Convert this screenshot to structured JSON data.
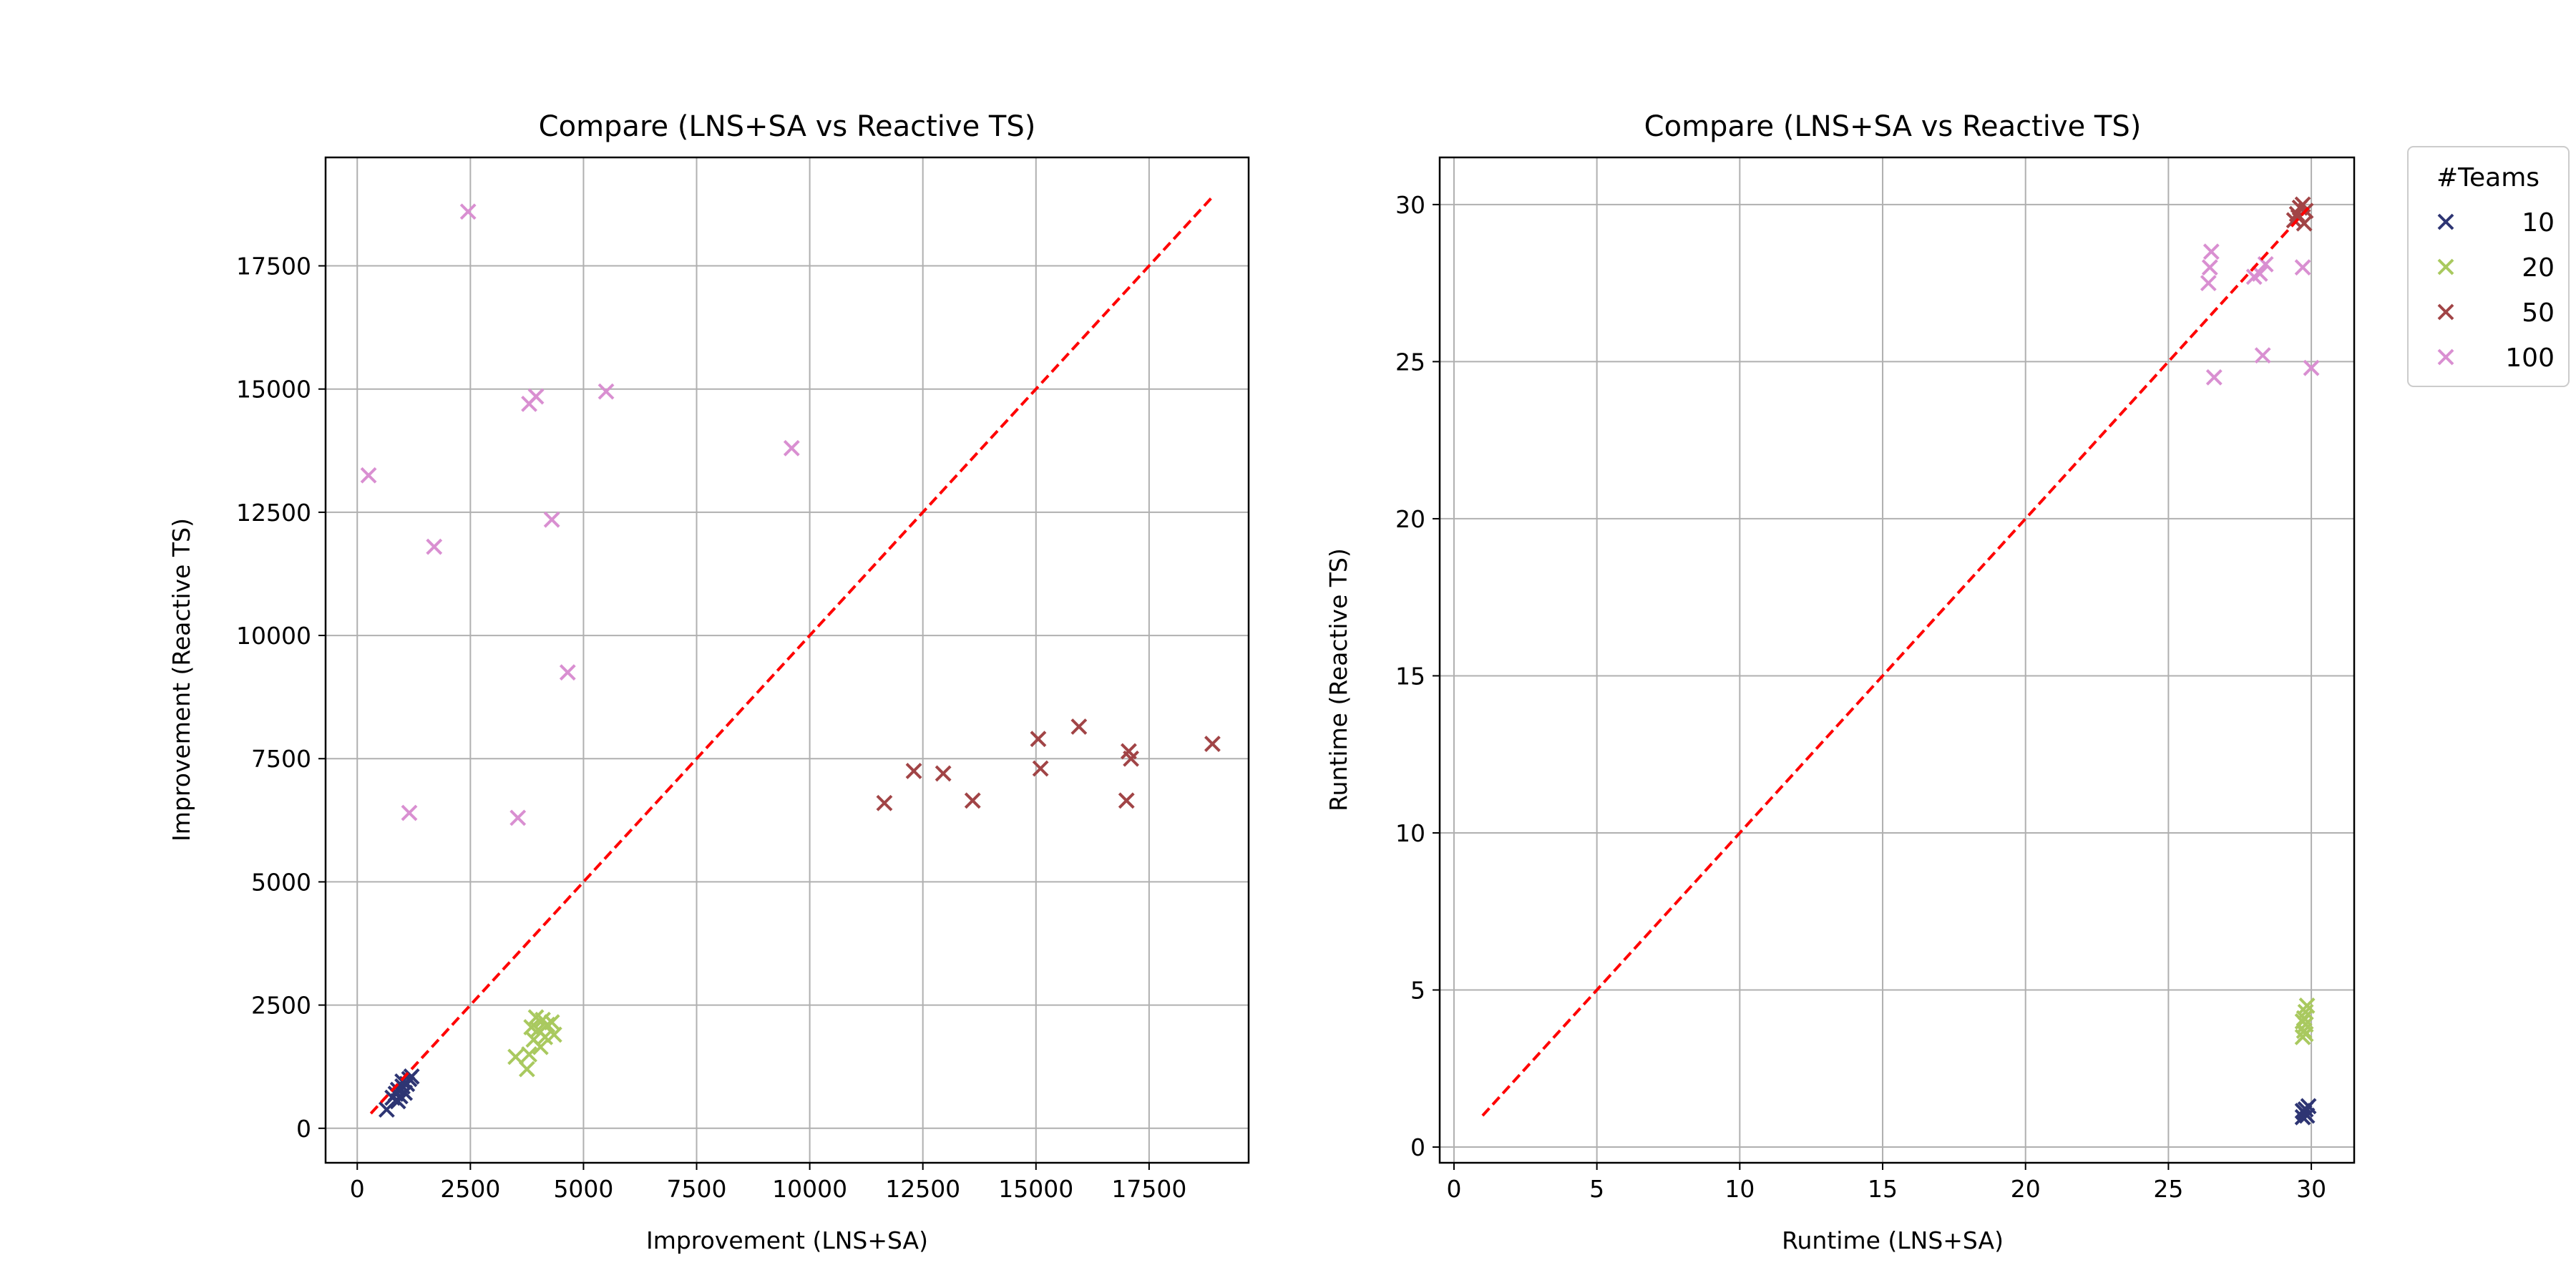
{
  "legend": {
    "title": "#Teams",
    "entries": [
      {
        "label": "10",
        "color": "#2e3573"
      },
      {
        "label": "20",
        "color": "#a9c95f"
      },
      {
        "label": "50",
        "color": "#a14446"
      },
      {
        "label": "100",
        "color": "#d98fd1"
      }
    ]
  },
  "chart_data": [
    {
      "type": "scatter",
      "title": "Compare (LNS+SA vs Reactive TS)",
      "xlabel": "Improvement (LNS+SA)",
      "ylabel": "Improvement (Reactive TS)",
      "xlim": [
        -700,
        19700
      ],
      "ylim": [
        -700,
        19700
      ],
      "xticks": [
        0,
        2500,
        5000,
        7500,
        10000,
        12500,
        15000,
        17500
      ],
      "yticks": [
        0,
        2500,
        5000,
        7500,
        10000,
        12500,
        15000,
        17500
      ],
      "grid": true,
      "reference_line": {
        "x": [
          300,
          18900
        ],
        "y": [
          300,
          18900
        ],
        "color": "#ff0000",
        "style": "dashed"
      },
      "series": [
        {
          "name": "10",
          "color": "#2e3573",
          "marker": "x",
          "points": [
            [
              650,
              380
            ],
            [
              780,
              620
            ],
            [
              850,
              700
            ],
            [
              900,
              780
            ],
            [
              950,
              650
            ],
            [
              1000,
              850
            ],
            [
              1050,
              720
            ],
            [
              1100,
              900
            ],
            [
              1150,
              1000
            ],
            [
              1200,
              1050
            ],
            [
              900,
              550
            ],
            [
              1000,
              950
            ]
          ]
        },
        {
          "name": "20",
          "color": "#a9c95f",
          "marker": "x",
          "points": [
            [
              3500,
              1450
            ],
            [
              3750,
              1200
            ],
            [
              3800,
              1500
            ],
            [
              3850,
              2050
            ],
            [
              3900,
              1800
            ],
            [
              3950,
              2250
            ],
            [
              4000,
              2000
            ],
            [
              4050,
              1650
            ],
            [
              4100,
              2200
            ],
            [
              4150,
              1850
            ],
            [
              4200,
              2100
            ],
            [
              4300,
              2150
            ],
            [
              4350,
              1900
            ]
          ]
        },
        {
          "name": "50",
          "color": "#a14446",
          "marker": "x",
          "points": [
            [
              11650,
              6600
            ],
            [
              12300,
              7250
            ],
            [
              12950,
              7200
            ],
            [
              13600,
              6650
            ],
            [
              15050,
              7900
            ],
            [
              15100,
              7300
            ],
            [
              15950,
              8150
            ],
            [
              17000,
              6650
            ],
            [
              17050,
              7650
            ],
            [
              17100,
              7500
            ],
            [
              18900,
              7800
            ]
          ]
        },
        {
          "name": "100",
          "color": "#d98fd1",
          "marker": "x",
          "points": [
            [
              250,
              13250
            ],
            [
              1150,
              6400
            ],
            [
              1700,
              11800
            ],
            [
              2450,
              18600
            ],
            [
              3550,
              6300
            ],
            [
              3800,
              14700
            ],
            [
              3950,
              14850
            ],
            [
              4300,
              12350
            ],
            [
              4650,
              9250
            ],
            [
              5500,
              14950
            ],
            [
              9600,
              13800
            ]
          ]
        }
      ]
    },
    {
      "type": "scatter",
      "title": "Compare (LNS+SA vs Reactive TS)",
      "xlabel": "Runtime (LNS+SA)",
      "ylabel": "Runtime (Reactive TS)",
      "xlim": [
        -0.5,
        31.5
      ],
      "ylim": [
        -0.5,
        31.5
      ],
      "xticks": [
        0,
        5,
        10,
        15,
        20,
        25,
        30
      ],
      "yticks": [
        0,
        5,
        10,
        15,
        20,
        25,
        30
      ],
      "grid": true,
      "reference_line": {
        "x": [
          1,
          30
        ],
        "y": [
          1,
          30
        ],
        "color": "#ff0000",
        "style": "dashed"
      },
      "series": [
        {
          "name": "10",
          "color": "#2e3573",
          "marker": "x",
          "points": [
            [
              29.7,
              0.95
            ],
            [
              29.75,
              1.1
            ],
            [
              29.8,
              1.2
            ],
            [
              29.85,
              1.0
            ],
            [
              29.9,
              1.3
            ],
            [
              29.7,
              1.15
            ]
          ]
        },
        {
          "name": "20",
          "color": "#a9c95f",
          "marker": "x",
          "points": [
            [
              29.7,
              3.5
            ],
            [
              29.75,
              3.7
            ],
            [
              29.8,
              3.9
            ],
            [
              29.75,
              4.1
            ],
            [
              29.8,
              4.3
            ],
            [
              29.85,
              4.5
            ],
            [
              29.7,
              4.0
            ],
            [
              29.8,
              3.6
            ]
          ]
        },
        {
          "name": "50",
          "color": "#a14446",
          "marker": "x",
          "points": [
            [
              29.4,
              29.5
            ],
            [
              29.5,
              29.7
            ],
            [
              29.6,
              29.9
            ],
            [
              29.7,
              30.0
            ],
            [
              29.8,
              29.8
            ],
            [
              29.55,
              29.6
            ],
            [
              29.75,
              29.4
            ]
          ]
        },
        {
          "name": "100",
          "color": "#d98fd1",
          "marker": "x",
          "points": [
            [
              26.4,
              27.5
            ],
            [
              26.45,
              28.0
            ],
            [
              26.5,
              28.5
            ],
            [
              26.6,
              24.5
            ],
            [
              28.0,
              27.7
            ],
            [
              28.2,
              27.8
            ],
            [
              28.3,
              25.2
            ],
            [
              28.4,
              28.1
            ],
            [
              29.7,
              28.0
            ],
            [
              30.0,
              24.8
            ]
          ]
        }
      ]
    }
  ]
}
